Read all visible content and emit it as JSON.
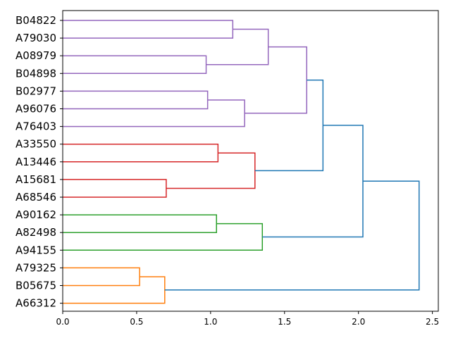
{
  "chart_data": {
    "type": "dendrogram",
    "orientation": "left",
    "title": "",
    "xlabel": "",
    "ylabel": "",
    "xlim": [
      0,
      2.54
    ],
    "x_ticks": [
      0.0,
      0.5,
      1.0,
      1.5,
      2.0,
      2.5
    ],
    "x_tick_labels": [
      "0.0",
      "0.5",
      "1.0",
      "1.5",
      "2.0",
      "2.5"
    ],
    "leaves": [
      "B04822",
      "A79030",
      "A08979",
      "B04898",
      "B02977",
      "A96076",
      "A76403",
      "A33550",
      "A13446",
      "A15681",
      "A68546",
      "A90162",
      "A82498",
      "A94155",
      "A79325",
      "B05675",
      "A66312"
    ],
    "colors": {
      "purple": "#9467bd",
      "red": "#d62728",
      "green": "#2ca02c",
      "orange": "#ff7f0e",
      "above_threshold": "#1f77b4"
    },
    "merges": [
      {
        "id": "m1",
        "left": "B04822",
        "right": "A79030",
        "height": 1.15,
        "color": "purple"
      },
      {
        "id": "m2",
        "left": "A08979",
        "right": "B04898",
        "height": 0.97,
        "color": "purple"
      },
      {
        "id": "m3",
        "left": "m1",
        "right": "m2",
        "height": 1.39,
        "color": "purple"
      },
      {
        "id": "m4",
        "left": "B02977",
        "right": "A96076",
        "height": 0.98,
        "color": "purple"
      },
      {
        "id": "m5",
        "left": "m4",
        "right": "A76403",
        "height": 1.23,
        "color": "purple"
      },
      {
        "id": "m6",
        "left": "m3",
        "right": "m5",
        "height": 1.65,
        "color": "purple"
      },
      {
        "id": "m7",
        "left": "A33550",
        "right": "A13446",
        "height": 1.05,
        "color": "red"
      },
      {
        "id": "m8",
        "left": "A15681",
        "right": "A68546",
        "height": 0.7,
        "color": "red"
      },
      {
        "id": "m9",
        "left": "m7",
        "right": "m8",
        "height": 1.3,
        "color": "red"
      },
      {
        "id": "m10",
        "left": "m6",
        "right": "m9",
        "height": 1.76,
        "color": "above_threshold"
      },
      {
        "id": "m11",
        "left": "A90162",
        "right": "A82498",
        "height": 1.04,
        "color": "green"
      },
      {
        "id": "m12",
        "left": "m11",
        "right": "A94155",
        "height": 1.35,
        "color": "green"
      },
      {
        "id": "m13",
        "left": "m10",
        "right": "m12",
        "height": 2.03,
        "color": "above_threshold"
      },
      {
        "id": "m14",
        "left": "A79325",
        "right": "B05675",
        "height": 0.52,
        "color": "orange"
      },
      {
        "id": "m15",
        "left": "m14",
        "right": "A66312",
        "height": 0.69,
        "color": "orange"
      },
      {
        "id": "m16",
        "left": "m13",
        "right": "m15",
        "height": 2.41,
        "color": "above_threshold"
      }
    ]
  }
}
